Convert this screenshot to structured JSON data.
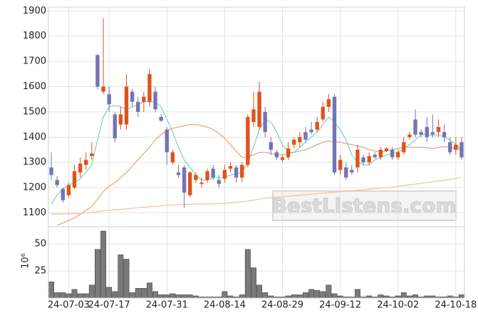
{
  "chart_data": {
    "type": "candlestick",
    "categories": [
      null,
      null,
      null,
      "24-07-03",
      null,
      null,
      null,
      null,
      null,
      null,
      "24-07-17",
      null,
      null,
      null,
      null,
      null,
      null,
      null,
      null,
      null,
      "24-07-31",
      null,
      null,
      null,
      null,
      null,
      null,
      null,
      null,
      null,
      "24-08-14",
      null,
      null,
      null,
      null,
      null,
      null,
      null,
      null,
      null,
      "24-08-29",
      null,
      null,
      null,
      null,
      null,
      null,
      null,
      null,
      null,
      "24-09-12",
      null,
      null,
      null,
      null,
      null,
      null,
      null,
      null,
      null,
      "24-10-02",
      null,
      null,
      null,
      null,
      null,
      null,
      null,
      null,
      null,
      "24-10-18",
      null
    ],
    "open": [
      1280,
      1230,
      1195,
      1170,
      1200,
      1260,
      1290,
      1325,
      1725,
      1580,
      1570,
      1490,
      1450,
      1450,
      1580,
      1540,
      1540,
      1540,
      1580,
      1480,
      1430,
      1300,
      1260,
      1280,
      1170,
      1230,
      1215,
      1230,
      1275,
      1230,
      1235,
      1275,
      1280,
      1240,
      1290,
      1460,
      1440,
      1500,
      1380,
      1340,
      1310,
      1320,
      1370,
      1380,
      1420,
      1430,
      1430,
      1470,
      1520,
      1560,
      1270,
      1280,
      1270,
      1280,
      1320,
      1300,
      1330,
      1320,
      1345,
      1350,
      1320,
      1340,
      1400,
      1470,
      1420,
      1440,
      1420,
      1420,
      1420,
      1380,
      1350,
      1380
    ],
    "high": [
      1340,
      1245,
      1200,
      1220,
      1290,
      1320,
      1340,
      1380,
      1730,
      1870,
      1600,
      1500,
      1520,
      1650,
      1590,
      1560,
      1580,
      1670,
      1600,
      1490,
      1440,
      1350,
      1290,
      1290,
      1265,
      1260,
      1240,
      1275,
      1290,
      1250,
      1290,
      1300,
      1290,
      1300,
      1490,
      1580,
      1620,
      1520,
      1400,
      1350,
      1330,
      1380,
      1400,
      1420,
      1440,
      1460,
      1480,
      1540,
      1570,
      1570,
      1330,
      1300,
      1290,
      1370,
      1330,
      1340,
      1340,
      1360,
      1360,
      1360,
      1350,
      1400,
      1420,
      1510,
      1430,
      1480,
      1490,
      1470,
      1450,
      1400,
      1400,
      1400
    ],
    "low": [
      1230,
      1200,
      1140,
      1160,
      1195,
      1240,
      1270,
      1310,
      1590,
      1570,
      1500,
      1380,
      1430,
      1430,
      1520,
      1480,
      1500,
      1520,
      1500,
      1460,
      1290,
      1290,
      1240,
      1120,
      1160,
      1220,
      1200,
      1220,
      1230,
      1200,
      1220,
      1260,
      1220,
      1220,
      1280,
      1440,
      1430,
      1400,
      1330,
      1310,
      1300,
      1310,
      1355,
      1360,
      1380,
      1410,
      1420,
      1460,
      1500,
      1250,
      1250,
      1230,
      1250,
      1260,
      1290,
      1290,
      1315,
      1310,
      1340,
      1310,
      1310,
      1330,
      1390,
      1400,
      1400,
      1380,
      1400,
      1400,
      1380,
      1330,
      1330,
      1310
    ],
    "close": [
      1250,
      1210,
      1150,
      1210,
      1265,
      1295,
      1310,
      1335,
      1600,
      1600,
      1530,
      1395,
      1490,
      1600,
      1540,
      1500,
      1560,
      1650,
      1510,
      1465,
      1340,
      1340,
      1250,
      1180,
      1260,
      1250,
      1220,
      1265,
      1240,
      1215,
      1270,
      1285,
      1240,
      1290,
      1480,
      1510,
      1580,
      1420,
      1350,
      1320,
      1320,
      1355,
      1390,
      1400,
      1390,
      1420,
      1460,
      1520,
      1550,
      1260,
      1310,
      1240,
      1260,
      1350,
      1300,
      1325,
      1320,
      1350,
      1355,
      1320,
      1340,
      1380,
      1410,
      1410,
      1410,
      1400,
      1410,
      1440,
      1400,
      1340,
      1370,
      1320
    ],
    "up_color": "#e0521c",
    "down_color": "#7474b4",
    "ylim": [
      1045,
      1915
    ],
    "yticks": [
      1100,
      1200,
      1300,
      1400,
      1500,
      1600,
      1700,
      1800,
      1900
    ],
    "grid": true,
    "series": [
      {
        "color": "#84d6c4",
        "values": [
          1135,
          1170,
          1195,
          1210,
          1220,
          1235,
          1260,
          1290,
          1390,
          1480,
          1520,
          1525,
          1520,
          1510,
          1520,
          1530,
          1540,
          1540,
          1540,
          1520,
          1470,
          1420,
          1360,
          1310,
          1280,
          1250,
          1230,
          1230,
          1240,
          1240,
          1240,
          1250,
          1255,
          1260,
          1300,
          1360,
          1430,
          1470,
          1460,
          1420,
          1370,
          1340,
          1340,
          1360,
          1380,
          1400,
          1420,
          1450,
          1480,
          1460,
          1430,
          1390,
          1330,
          1300,
          1290,
          1290,
          1310,
          1320,
          1330,
          1335,
          1340,
          1355,
          1370,
          1390,
          1410,
          1410,
          1405,
          1410,
          1400,
          1390,
          1370,
          1350
        ]
      },
      {
        "color": "#e8a782",
        "values": [
          null,
          1050,
          1060,
          1070,
          1080,
          1095,
          1110,
          1125,
          1155,
          1185,
          1205,
          1220,
          1240,
          1260,
          1285,
          1310,
          1335,
          1360,
          1390,
          1410,
          1425,
          1435,
          1440,
          1445,
          1450,
          1450,
          1445,
          1440,
          1430,
          1415,
          1395,
          1370,
          1345,
          1320,
          1320,
          1330,
          1340,
          1340,
          1335,
          1330,
          1330,
          1335,
          1340,
          1345,
          1350,
          1360,
          1370,
          1380,
          1385,
          1380,
          1380,
          1375,
          1370,
          1365,
          1360,
          1350,
          1345,
          1340,
          1345,
          1350,
          1355,
          1360,
          1360,
          1360,
          1360,
          1358,
          1355,
          1360,
          1362,
          1360,
          1355,
          1350
        ]
      },
      {
        "color": "#f0c6a8",
        "values": [
          1095,
          1095,
          1095,
          1096,
          1097,
          1098,
          1100,
          1102,
          1105,
          1108,
          1110,
          1112,
          1114,
          1116,
          1118,
          1120,
          1122,
          1124,
          1126,
          1128,
          1130,
          1131,
          1132,
          1133,
          1134,
          1135,
          1135,
          1136,
          1136,
          1137,
          1138,
          1140,
          1142,
          1144,
          1146,
          1150,
          1155,
          1158,
          1160,
          1162,
          1164,
          1166,
          1168,
          1170,
          1172,
          1174,
          1176,
          1178,
          1180,
          1182,
          1184,
          1186,
          1188,
          1190,
          1192,
          1194,
          1196,
          1198,
          1200,
          1202,
          1205,
          1208,
          1211,
          1214,
          1217,
          1220,
          1223,
          1226,
          1229,
          1232,
          1236,
          1240
        ]
      }
    ],
    "volume": {
      "ylabel": "10⁶",
      "color": "#7a7a7a",
      "ylim": [
        0,
        66
      ],
      "yticks": [
        25,
        50
      ],
      "values": [
        15,
        5,
        5,
        4,
        8,
        4,
        4,
        12,
        45,
        62,
        10,
        6,
        40,
        36,
        5,
        9,
        9,
        14,
        6,
        3,
        3,
        4,
        3,
        3,
        3,
        2,
        1,
        1,
        1,
        1,
        6,
        2,
        1,
        3,
        45,
        28,
        12,
        5,
        2,
        1,
        1,
        2,
        3,
        3,
        5,
        8,
        7,
        6,
        12,
        4,
        2,
        1,
        1,
        8,
        1,
        2,
        1,
        3,
        2,
        1,
        2,
        5,
        2,
        3,
        1,
        2,
        2,
        1,
        1,
        2,
        1,
        3
      ]
    },
    "watermark": "BestListens.com"
  }
}
